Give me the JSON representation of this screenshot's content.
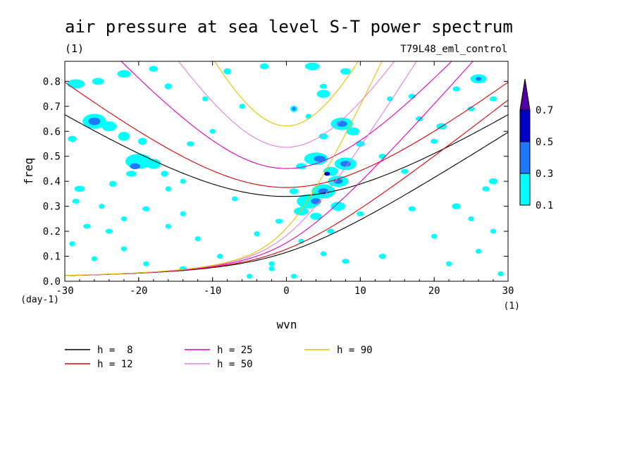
{
  "chart_data": {
    "type": "heatmap",
    "title": "air pressure at sea level S-T power spectrum",
    "units_label": "(1)",
    "run_label": "T79L48_eml_control",
    "xlabel": "wvn",
    "ylabel": "freq",
    "x_unit_label": "(1)",
    "y_unit_label": "(day-1)",
    "xlim": [
      -30,
      30
    ],
    "ylim": [
      0,
      0.88
    ],
    "xticks": [
      -30,
      -20,
      -10,
      0,
      10,
      20,
      30
    ],
    "yticks": [
      0.0,
      0.1,
      0.2,
      0.3,
      0.4,
      0.5,
      0.6,
      0.7,
      0.8
    ],
    "colorbar": {
      "levels": [
        0.1,
        0.3,
        0.5,
        0.7
      ],
      "labels": [
        "0.1",
        "0.3",
        "0.5",
        "0.7"
      ],
      "colors": [
        "#00ffff",
        "#1e78ff",
        "#0000c8",
        "#5000a0"
      ]
    },
    "series": [
      {
        "name": "h =  8",
        "color": "#000000"
      },
      {
        "name": "h = 12",
        "color": "#e00000"
      },
      {
        "name": "h = 25",
        "color": "#e000c0"
      },
      {
        "name": "h = 50",
        "color": "#e080e0"
      },
      {
        "name": "h = 90",
        "color": "#e8c000"
      }
    ],
    "patches": [
      [
        -28.5,
        0.79,
        1.2,
        0.018,
        1
      ],
      [
        -25.5,
        0.8,
        0.8,
        0.014,
        1
      ],
      [
        -22,
        0.83,
        0.9,
        0.015,
        1
      ],
      [
        -18,
        0.85,
        0.6,
        0.012,
        1
      ],
      [
        -16,
        0.78,
        0.5,
        0.012,
        1
      ],
      [
        -29,
        0.57,
        0.6,
        0.012,
        1
      ],
      [
        -26,
        0.64,
        1.6,
        0.03,
        1
      ],
      [
        -26,
        0.64,
        0.8,
        0.015,
        2
      ],
      [
        -24,
        0.62,
        1.0,
        0.02,
        1
      ],
      [
        -22,
        0.58,
        0.8,
        0.018,
        1
      ],
      [
        -19.5,
        0.56,
        0.6,
        0.014,
        1
      ],
      [
        -20,
        0.48,
        1.8,
        0.03,
        1
      ],
      [
        -20.5,
        0.46,
        0.7,
        0.012,
        2
      ],
      [
        -18,
        0.47,
        1.0,
        0.02,
        1
      ],
      [
        -16.5,
        0.43,
        0.5,
        0.012,
        1
      ],
      [
        -21,
        0.43,
        0.7,
        0.012,
        1
      ],
      [
        -14,
        0.4,
        0.4,
        0.01,
        1
      ],
      [
        -16,
        0.37,
        0.4,
        0.01,
        1
      ],
      [
        -28,
        0.37,
        0.7,
        0.012,
        1
      ],
      [
        -23.5,
        0.39,
        0.5,
        0.012,
        1
      ],
      [
        -28.5,
        0.32,
        0.5,
        0.01,
        1
      ],
      [
        -25,
        0.3,
        0.4,
        0.01,
        1
      ],
      [
        -19,
        0.29,
        0.5,
        0.01,
        1
      ],
      [
        -14,
        0.27,
        0.4,
        0.01,
        1
      ],
      [
        -22,
        0.25,
        0.4,
        0.01,
        1
      ],
      [
        -27,
        0.22,
        0.5,
        0.01,
        1
      ],
      [
        -24,
        0.2,
        0.5,
        0.01,
        1
      ],
      [
        -16,
        0.22,
        0.4,
        0.01,
        1
      ],
      [
        -29,
        0.15,
        0.4,
        0.01,
        1
      ],
      [
        -22,
        0.13,
        0.4,
        0.01,
        1
      ],
      [
        -26,
        0.09,
        0.4,
        0.01,
        1
      ],
      [
        -19,
        0.07,
        0.4,
        0.01,
        1
      ],
      [
        -8,
        0.84,
        0.5,
        0.012,
        1
      ],
      [
        -3,
        0.86,
        0.6,
        0.012,
        1
      ],
      [
        -11,
        0.73,
        0.4,
        0.01,
        1
      ],
      [
        -6,
        0.7,
        0.4,
        0.01,
        1
      ],
      [
        -10,
        0.6,
        0.4,
        0.01,
        1
      ],
      [
        -13,
        0.55,
        0.5,
        0.01,
        1
      ],
      [
        -7,
        0.33,
        0.4,
        0.01,
        1
      ],
      [
        -12,
        0.17,
        0.4,
        0.01,
        1
      ],
      [
        -4,
        0.19,
        0.4,
        0.01,
        1
      ],
      [
        -9,
        0.1,
        0.4,
        0.01,
        1
      ],
      [
        -2,
        0.07,
        0.4,
        0.01,
        1
      ],
      [
        -14,
        0.05,
        0.5,
        0.01,
        1
      ],
      [
        -5,
        0.02,
        0.4,
        0.01,
        1
      ],
      [
        3.5,
        0.86,
        1.0,
        0.015,
        1
      ],
      [
        8,
        0.84,
        0.7,
        0.013,
        1
      ],
      [
        5,
        0.78,
        0.5,
        0.01,
        1
      ],
      [
        5,
        0.75,
        0.9,
        0.016,
        1
      ],
      [
        1,
        0.69,
        0.5,
        0.013,
        1
      ],
      [
        1,
        0.69,
        0.25,
        0.007,
        2
      ],
      [
        3,
        0.66,
        0.4,
        0.01,
        1
      ],
      [
        7.5,
        0.63,
        1.5,
        0.025,
        1
      ],
      [
        7.5,
        0.63,
        0.7,
        0.012,
        2
      ],
      [
        9,
        0.6,
        0.9,
        0.016,
        1
      ],
      [
        5,
        0.58,
        0.6,
        0.012,
        1
      ],
      [
        10,
        0.55,
        0.6,
        0.012,
        1
      ],
      [
        4,
        0.49,
        1.6,
        0.025,
        1
      ],
      [
        4.5,
        0.49,
        0.8,
        0.012,
        2
      ],
      [
        8,
        0.47,
        1.5,
        0.025,
        1
      ],
      [
        8,
        0.47,
        0.7,
        0.012,
        2
      ],
      [
        2,
        0.46,
        0.7,
        0.013,
        1
      ],
      [
        6,
        0.44,
        1.0,
        0.018,
        1
      ],
      [
        5.5,
        0.43,
        0.4,
        0.008,
        3
      ],
      [
        7,
        0.4,
        1.4,
        0.022,
        1
      ],
      [
        7,
        0.4,
        0.6,
        0.01,
        2
      ],
      [
        5,
        0.36,
        1.6,
        0.028,
        1
      ],
      [
        5,
        0.36,
        0.7,
        0.012,
        2
      ],
      [
        3,
        0.32,
        1.6,
        0.028,
        1
      ],
      [
        4,
        0.32,
        0.7,
        0.012,
        2
      ],
      [
        7,
        0.3,
        1.0,
        0.018,
        1
      ],
      [
        2,
        0.28,
        1.0,
        0.016,
        1
      ],
      [
        4,
        0.26,
        0.8,
        0.014,
        1
      ],
      [
        1,
        0.36,
        0.6,
        0.012,
        1
      ],
      [
        -1,
        0.24,
        0.5,
        0.01,
        1
      ],
      [
        10,
        0.27,
        0.5,
        0.01,
        1
      ],
      [
        6,
        0.2,
        0.5,
        0.01,
        1
      ],
      [
        2,
        0.16,
        0.4,
        0.01,
        1
      ],
      [
        5,
        0.11,
        0.4,
        0.01,
        1
      ],
      [
        -2,
        0.05,
        0.4,
        0.01,
        1
      ],
      [
        8,
        0.08,
        0.5,
        0.01,
        1
      ],
      [
        13,
        0.1,
        0.5,
        0.01,
        1
      ],
      [
        1,
        0.02,
        0.4,
        0.01,
        1
      ],
      [
        14,
        0.73,
        0.4,
        0.01,
        1
      ],
      [
        17,
        0.74,
        0.5,
        0.01,
        1
      ],
      [
        18,
        0.65,
        0.5,
        0.01,
        1
      ],
      [
        21,
        0.62,
        0.7,
        0.013,
        1
      ],
      [
        20,
        0.56,
        0.5,
        0.01,
        1
      ],
      [
        26,
        0.81,
        1.1,
        0.018,
        1
      ],
      [
        26,
        0.81,
        0.4,
        0.008,
        2
      ],
      [
        23,
        0.77,
        0.5,
        0.01,
        1
      ],
      [
        28,
        0.73,
        0.5,
        0.01,
        1
      ],
      [
        25,
        0.69,
        0.5,
        0.01,
        1
      ],
      [
        13,
        0.5,
        0.5,
        0.01,
        1
      ],
      [
        16,
        0.44,
        0.5,
        0.01,
        1
      ],
      [
        28,
        0.4,
        0.6,
        0.012,
        1
      ],
      [
        27,
        0.37,
        0.5,
        0.01,
        1
      ],
      [
        23,
        0.3,
        0.6,
        0.012,
        1
      ],
      [
        17,
        0.29,
        0.5,
        0.01,
        1
      ],
      [
        25,
        0.25,
        0.4,
        0.01,
        1
      ],
      [
        28,
        0.2,
        0.4,
        0.01,
        1
      ],
      [
        20,
        0.18,
        0.4,
        0.01,
        1
      ],
      [
        26,
        0.12,
        0.4,
        0.01,
        1
      ],
      [
        22,
        0.07,
        0.4,
        0.01,
        1
      ],
      [
        29,
        0.03,
        0.4,
        0.01,
        1
      ]
    ]
  },
  "legend": [
    {
      "label": "h =  8",
      "color": "#000000"
    },
    {
      "label": "h = 25",
      "color": "#e000c0"
    },
    {
      "label": "h = 90",
      "color": "#e8c000"
    },
    {
      "label": "h = 12",
      "color": "#e00000"
    },
    {
      "label": "h = 50",
      "color": "#e080e0"
    }
  ]
}
